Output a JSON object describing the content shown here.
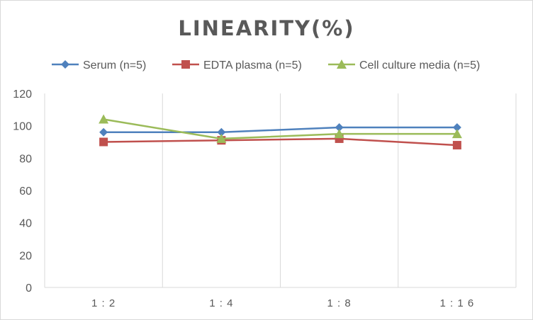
{
  "chart_data": {
    "type": "line",
    "title": "LINEARITY(%)",
    "categories": [
      "1:2",
      "1:4",
      "1:8",
      "1:16"
    ],
    "ylim": [
      0,
      120
    ],
    "yticks": [
      0,
      20,
      40,
      60,
      80,
      100,
      120
    ],
    "grid": "vertical",
    "legend_position": "top",
    "series": [
      {
        "name": "Serum (n=5)",
        "values": [
          96,
          96,
          99,
          99
        ],
        "color": "#4f81bd",
        "marker": "diamond"
      },
      {
        "name": "EDTA plasma (n=5)",
        "values": [
          90,
          91,
          92,
          88
        ],
        "color": "#c0504d",
        "marker": "square"
      },
      {
        "name": "Cell culture media (n=5)",
        "values": [
          104,
          92,
          95,
          95
        ],
        "color": "#9bbb59",
        "marker": "triangle"
      }
    ]
  }
}
